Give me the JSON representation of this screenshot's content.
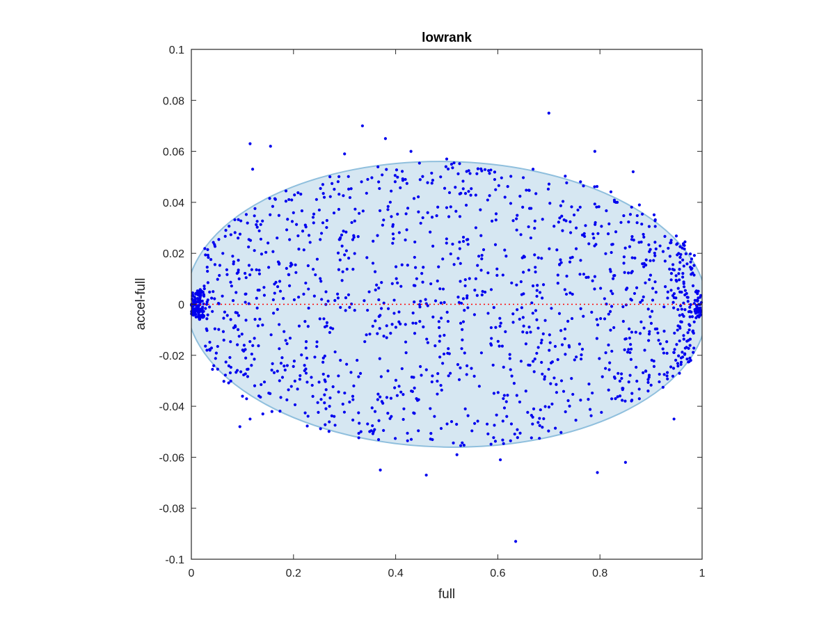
{
  "chart_data": {
    "type": "scatter",
    "title": "lowrank",
    "xlabel": "full",
    "ylabel": "accel-full",
    "xlim": [
      0,
      1
    ],
    "ylim": [
      -0.1,
      0.1
    ],
    "xticks": [
      0,
      0.2,
      0.4,
      0.6,
      0.8,
      1
    ],
    "xtick_labels": [
      "0",
      "0.2",
      "0.4",
      "0.6",
      "0.8",
      "1"
    ],
    "yticks": [
      -0.1,
      -0.08,
      -0.06,
      -0.04,
      -0.02,
      0,
      0.02,
      0.04,
      0.06,
      0.08,
      0.1
    ],
    "ytick_labels": [
      "-0.1",
      "-0.08",
      "-0.06",
      "-0.04",
      "-0.02",
      "0",
      "0.02",
      "0.04",
      "0.06",
      "0.08",
      "0.1"
    ],
    "grid": false,
    "reference_line": {
      "y": 0,
      "style": "dotted",
      "color": "#ff0000"
    },
    "region": {
      "type": "ellipse",
      "description": "filled confidence ellipse",
      "center": [
        0.5,
        0.0
      ],
      "semi_axis_x": 0.51,
      "semi_axis_y": 0.056,
      "tilt": "slight downward tilt to the right",
      "fill": "#d6e7f2",
      "stroke": "#8fbfdd"
    },
    "series": [
      {
        "marker_color": "#0000ee",
        "sample_points": [
          [
            0.115,
            0.063
          ],
          [
            0.155,
            0.062
          ],
          [
            0.335,
            0.07
          ],
          [
            0.38,
            0.065
          ],
          [
            0.43,
            0.06
          ],
          [
            0.7,
            0.075
          ],
          [
            0.79,
            0.06
          ],
          [
            0.865,
            0.052
          ],
          [
            0.12,
            0.053
          ],
          [
            0.3,
            0.059
          ],
          [
            0.5,
            0.057
          ],
          [
            0.095,
            -0.048
          ],
          [
            0.115,
            -0.045
          ],
          [
            0.14,
            -0.043
          ],
          [
            0.37,
            -0.065
          ],
          [
            0.46,
            -0.067
          ],
          [
            0.52,
            -0.059
          ],
          [
            0.635,
            -0.093
          ],
          [
            0.605,
            -0.061
          ],
          [
            0.795,
            -0.066
          ],
          [
            0.85,
            -0.062
          ],
          [
            0.945,
            -0.045
          ]
        ]
      }
    ]
  }
}
